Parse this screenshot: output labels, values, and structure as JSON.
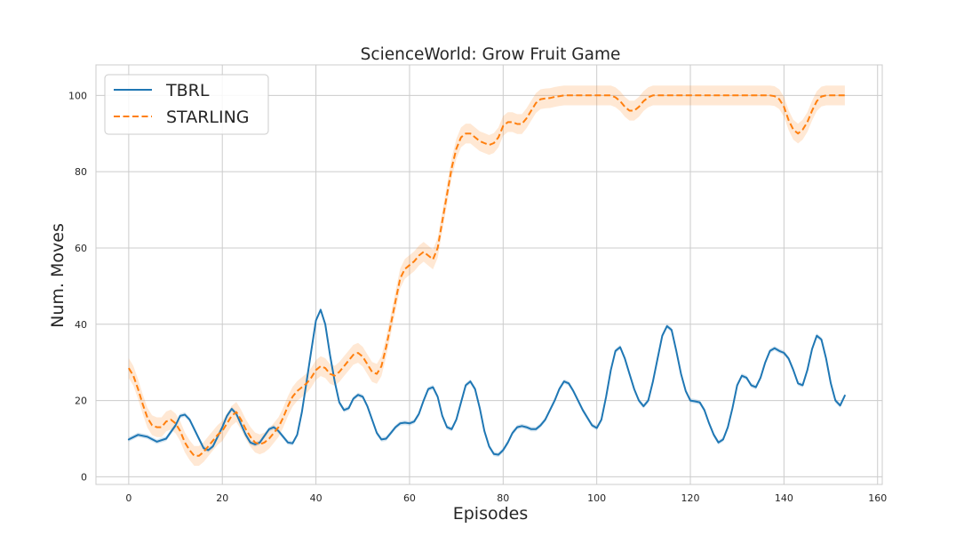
{
  "chart_data": {
    "type": "line",
    "title": "ScienceWorld: Grow Fruit Game",
    "xlabel": "Episodes",
    "ylabel": "Num. Moves",
    "xlim": [
      -7,
      161
    ],
    "ylim": [
      -2,
      108
    ],
    "xticks": [
      "0",
      "20",
      "40",
      "60",
      "80",
      "100",
      "120",
      "140",
      "160"
    ],
    "yticks": [
      "0",
      "20",
      "40",
      "60",
      "80",
      "100"
    ],
    "grid": true,
    "legend_position": "top-left",
    "series": [
      {
        "name": "TBRL",
        "color": "#1f77b4",
        "style": "solid",
        "band": 0.6,
        "points": [
          [
            0,
            9.8
          ],
          [
            2,
            11
          ],
          [
            4,
            10.5
          ],
          [
            6,
            9.2
          ],
          [
            8,
            10
          ],
          [
            10,
            13.5
          ],
          [
            11,
            16
          ],
          [
            12,
            16.3
          ],
          [
            13,
            15
          ],
          [
            15,
            10
          ],
          [
            16,
            7.5
          ],
          [
            17,
            7
          ],
          [
            18,
            8
          ],
          [
            20,
            13
          ],
          [
            21,
            16
          ],
          [
            22,
            17.8
          ],
          [
            23,
            16.5
          ],
          [
            25,
            11
          ],
          [
            26,
            9
          ],
          [
            27,
            8.5
          ],
          [
            28,
            9
          ],
          [
            30,
            12.5
          ],
          [
            31,
            13
          ],
          [
            32,
            12
          ],
          [
            34,
            9
          ],
          [
            35,
            8.8
          ],
          [
            36,
            11
          ],
          [
            37,
            17
          ],
          [
            38,
            25
          ],
          [
            39,
            33
          ],
          [
            40,
            41
          ],
          [
            41,
            43.8
          ],
          [
            42,
            40
          ],
          [
            43,
            32
          ],
          [
            44,
            25
          ],
          [
            45,
            19.5
          ],
          [
            46,
            17.5
          ],
          [
            47,
            18
          ],
          [
            48,
            20.5
          ],
          [
            49,
            21.5
          ],
          [
            50,
            21
          ],
          [
            51,
            18.5
          ],
          [
            52,
            15
          ],
          [
            53,
            11.5
          ],
          [
            54,
            9.8
          ],
          [
            55,
            10
          ],
          [
            56,
            11.5
          ],
          [
            57,
            13
          ],
          [
            58,
            14
          ],
          [
            59,
            14.2
          ],
          [
            60,
            14
          ],
          [
            61,
            14.5
          ],
          [
            62,
            16.5
          ],
          [
            63,
            20
          ],
          [
            64,
            23
          ],
          [
            65,
            23.5
          ],
          [
            66,
            21
          ],
          [
            67,
            16
          ],
          [
            68,
            13
          ],
          [
            69,
            12.5
          ],
          [
            70,
            15
          ],
          [
            71,
            19.5
          ],
          [
            72,
            24
          ],
          [
            73,
            25
          ],
          [
            74,
            23
          ],
          [
            75,
            18
          ],
          [
            76,
            12
          ],
          [
            77,
            8
          ],
          [
            78,
            6
          ],
          [
            79,
            5.8
          ],
          [
            80,
            7
          ],
          [
            81,
            9
          ],
          [
            82,
            11.5
          ],
          [
            83,
            13
          ],
          [
            84,
            13.3
          ],
          [
            85,
            13
          ],
          [
            86,
            12.5
          ],
          [
            87,
            12.5
          ],
          [
            88,
            13.5
          ],
          [
            89,
            15
          ],
          [
            90,
            17.5
          ],
          [
            91,
            20
          ],
          [
            92,
            23
          ],
          [
            93,
            25
          ],
          [
            94,
            24.5
          ],
          [
            95,
            22.5
          ],
          [
            96,
            20
          ],
          [
            97,
            17.5
          ],
          [
            98,
            15.5
          ],
          [
            99,
            13.5
          ],
          [
            100,
            12.8
          ],
          [
            101,
            15
          ],
          [
            102,
            21
          ],
          [
            103,
            28
          ],
          [
            104,
            33
          ],
          [
            105,
            34
          ],
          [
            106,
            31
          ],
          [
            107,
            27
          ],
          [
            108,
            23
          ],
          [
            109,
            20
          ],
          [
            110,
            18.5
          ],
          [
            111,
            20
          ],
          [
            112,
            25
          ],
          [
            113,
            31
          ],
          [
            114,
            37
          ],
          [
            115,
            39.5
          ],
          [
            116,
            38.5
          ],
          [
            117,
            33
          ],
          [
            118,
            27
          ],
          [
            119,
            22.5
          ],
          [
            120,
            20
          ],
          [
            121,
            19.8
          ],
          [
            122,
            19.5
          ],
          [
            123,
            17.5
          ],
          [
            124,
            14
          ],
          [
            125,
            11
          ],
          [
            126,
            9
          ],
          [
            127,
            9.8
          ],
          [
            128,
            13
          ],
          [
            129,
            18
          ],
          [
            130,
            24
          ],
          [
            131,
            26.5
          ],
          [
            132,
            26
          ],
          [
            133,
            24
          ],
          [
            134,
            23.5
          ],
          [
            135,
            26
          ],
          [
            136,
            30
          ],
          [
            137,
            33
          ],
          [
            138,
            33.7
          ],
          [
            139,
            33
          ],
          [
            140,
            32.5
          ],
          [
            141,
            31
          ],
          [
            142,
            28
          ],
          [
            143,
            24.5
          ],
          [
            144,
            24
          ],
          [
            145,
            28
          ],
          [
            146,
            33.5
          ],
          [
            147,
            37
          ],
          [
            148,
            36
          ],
          [
            149,
            31
          ],
          [
            150,
            24.5
          ],
          [
            151,
            20
          ],
          [
            152,
            18.7
          ],
          [
            153,
            21.3
          ]
        ]
      },
      {
        "name": "STARLING",
        "color": "#ff7f0e",
        "style": "dashed",
        "band": 2.6,
        "points": [
          [
            0,
            28.5
          ],
          [
            1,
            26.5
          ],
          [
            2,
            23
          ],
          [
            3,
            19
          ],
          [
            4,
            15.5
          ],
          [
            5,
            13.5
          ],
          [
            6,
            13
          ],
          [
            7,
            13
          ],
          [
            8,
            14.5
          ],
          [
            9,
            15
          ],
          [
            10,
            14
          ],
          [
            11,
            12
          ],
          [
            12,
            9
          ],
          [
            13,
            7
          ],
          [
            14,
            5.5
          ],
          [
            15,
            5.5
          ],
          [
            16,
            6.5
          ],
          [
            17,
            8
          ],
          [
            18,
            9.5
          ],
          [
            19,
            11
          ],
          [
            20,
            12
          ],
          [
            21,
            14
          ],
          [
            22,
            16
          ],
          [
            23,
            17
          ],
          [
            24,
            15
          ],
          [
            25,
            12.5
          ],
          [
            26,
            10.5
          ],
          [
            27,
            9
          ],
          [
            28,
            8.5
          ],
          [
            29,
            9
          ],
          [
            30,
            10
          ],
          [
            31,
            11.5
          ],
          [
            32,
            13
          ],
          [
            33,
            15.5
          ],
          [
            34,
            18.5
          ],
          [
            35,
            21
          ],
          [
            36,
            22.5
          ],
          [
            37,
            23.5
          ],
          [
            38,
            24.5
          ],
          [
            39,
            26
          ],
          [
            40,
            28
          ],
          [
            41,
            29
          ],
          [
            42,
            28.5
          ],
          [
            43,
            27
          ],
          [
            44,
            26.5
          ],
          [
            45,
            27.5
          ],
          [
            46,
            29
          ],
          [
            47,
            30.5
          ],
          [
            48,
            32
          ],
          [
            49,
            32.5
          ],
          [
            50,
            31.5
          ],
          [
            51,
            29.5
          ],
          [
            52,
            27.5
          ],
          [
            53,
            27
          ],
          [
            54,
            29
          ],
          [
            55,
            34
          ],
          [
            56,
            40
          ],
          [
            57,
            46
          ],
          [
            58,
            52
          ],
          [
            59,
            54.5
          ],
          [
            60,
            55.5
          ],
          [
            61,
            56.5
          ],
          [
            62,
            58
          ],
          [
            63,
            59
          ],
          [
            64,
            58
          ],
          [
            65,
            57
          ],
          [
            66,
            60
          ],
          [
            67,
            67
          ],
          [
            68,
            74
          ],
          [
            69,
            81
          ],
          [
            70,
            86
          ],
          [
            71,
            89
          ],
          [
            72,
            90
          ],
          [
            73,
            90
          ],
          [
            74,
            89
          ],
          [
            75,
            88
          ],
          [
            76,
            87.5
          ],
          [
            77,
            87
          ],
          [
            78,
            87.5
          ],
          [
            79,
            89
          ],
          [
            80,
            92
          ],
          [
            81,
            93
          ],
          [
            82,
            93
          ],
          [
            83,
            92.5
          ],
          [
            84,
            92.5
          ],
          [
            85,
            94
          ],
          [
            86,
            96
          ],
          [
            87,
            98
          ],
          [
            88,
            99
          ],
          [
            89,
            99.2
          ],
          [
            90,
            99.3
          ],
          [
            91,
            99.6
          ],
          [
            92,
            99.8
          ],
          [
            93,
            100
          ],
          [
            94,
            100
          ],
          [
            95,
            100
          ],
          [
            96,
            100
          ],
          [
            97,
            100
          ],
          [
            98,
            100
          ],
          [
            99,
            100
          ],
          [
            100,
            100
          ],
          [
            101,
            100
          ],
          [
            102,
            100
          ],
          [
            103,
            100
          ],
          [
            104,
            99.5
          ],
          [
            105,
            98.5
          ],
          [
            106,
            97
          ],
          [
            107,
            96
          ],
          [
            108,
            96
          ],
          [
            109,
            97
          ],
          [
            110,
            98.5
          ],
          [
            111,
            99.5
          ],
          [
            112,
            100
          ],
          [
            113,
            100
          ],
          [
            114,
            100
          ],
          [
            115,
            100
          ],
          [
            116,
            100
          ],
          [
            117,
            100
          ],
          [
            118,
            100
          ],
          [
            119,
            100
          ],
          [
            120,
            100
          ],
          [
            121,
            100
          ],
          [
            122,
            100
          ],
          [
            123,
            100
          ],
          [
            124,
            100
          ],
          [
            125,
            100
          ],
          [
            126,
            100
          ],
          [
            127,
            100
          ],
          [
            128,
            100
          ],
          [
            129,
            100
          ],
          [
            130,
            100
          ],
          [
            131,
            100
          ],
          [
            132,
            100
          ],
          [
            133,
            100
          ],
          [
            134,
            100
          ],
          [
            135,
            100
          ],
          [
            136,
            100
          ],
          [
            137,
            100
          ],
          [
            138,
            99.8
          ],
          [
            139,
            99
          ],
          [
            140,
            97
          ],
          [
            141,
            93.5
          ],
          [
            142,
            91
          ],
          [
            143,
            90
          ],
          [
            144,
            91
          ],
          [
            145,
            93
          ],
          [
            146,
            96
          ],
          [
            147,
            98.5
          ],
          [
            148,
            99.7
          ],
          [
            149,
            100
          ],
          [
            150,
            100
          ],
          [
            151,
            100
          ],
          [
            152,
            100
          ],
          [
            153,
            100
          ]
        ]
      }
    ]
  }
}
